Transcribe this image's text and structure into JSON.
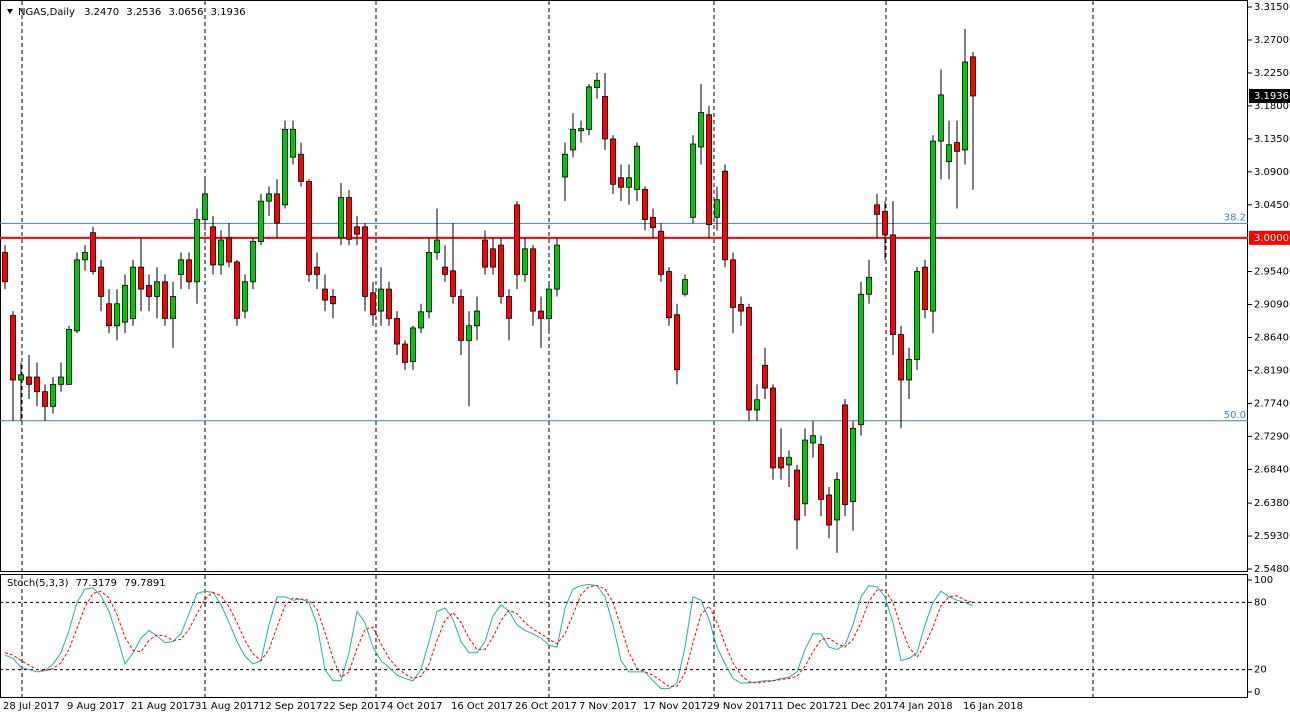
{
  "chart_data": [
    {
      "type": "candlestick",
      "title": "NGAS,Daily",
      "title_values": [
        {
          "value": 3.247,
          "label": "3.2470"
        },
        3.2536,
        3.0656,
        3.1936
      ],
      "categories": [
        "28 Jul 2017",
        null,
        null,
        null,
        null,
        null,
        null,
        null,
        "9 Aug 2017",
        null,
        null,
        null,
        null,
        null,
        null,
        null,
        "21 Aug 2017",
        null,
        null,
        null,
        null,
        null,
        null,
        null,
        "31 Aug 2017",
        null,
        null,
        null,
        null,
        null,
        null,
        null,
        "12 Sep 2017",
        null,
        null,
        null,
        null,
        null,
        null,
        null,
        "22 Sep 2017",
        null,
        null,
        null,
        null,
        null,
        null,
        null,
        "4 Oct 2017",
        null,
        null,
        null,
        null,
        null,
        null,
        null,
        "16 Oct 2017",
        null,
        null,
        null,
        null,
        null,
        null,
        null,
        "26 Oct 2017",
        null,
        null,
        null,
        null,
        null,
        null,
        null,
        "7 Nov 2017",
        null,
        null,
        null,
        null,
        null,
        null,
        null,
        "17 Nov 2017",
        null,
        null,
        null,
        null,
        null,
        null,
        null,
        "29 Nov 2017",
        null,
        null,
        null,
        null,
        null,
        null,
        null,
        "11 Dec 2017",
        null,
        null,
        null,
        null,
        null,
        null,
        null,
        "21 Dec 2017",
        null,
        null,
        null,
        null,
        null,
        null,
        null,
        "4 Jan 2018",
        null,
        null,
        null,
        null,
        null,
        null,
        null,
        "16 Jan 2018",
        null
      ],
      "open": [
        2.98,
        2.894,
        2.806,
        2.81,
        2.81,
        2.79,
        2.77,
        2.8,
        2.8,
        2.873,
        2.97,
        3.007,
        2.96,
        2.91,
        2.88,
        2.885,
        2.89,
        2.96,
        2.935,
        2.92,
        2.94,
        2.89,
        2.95,
        2.97,
        2.94,
        3.025,
        3.015,
        2.963,
        3.0,
        2.967,
        2.9,
        2.94,
        2.995,
        3.05,
        3.06,
        3.045,
        3.11,
        3.114,
        3.077,
        2.96,
        2.93,
        2.92,
        3.0,
        3.055,
        3.015,
        3.015,
        2.925,
        2.9,
        2.93,
        2.89,
        2.855,
        2.831,
        2.877,
        2.899,
        2.98,
        2.96,
        2.955,
        2.92,
        2.86,
        2.88,
        2.997,
        2.985,
        2.99,
        2.92,
        3.045,
        2.95,
        2.985,
        2.9,
        2.89,
        2.93,
        3.083,
        3.12,
        3.146,
        3.148,
        3.205,
        3.193,
        3.135,
        3.082,
        3.069,
        3.066,
        3.066,
        3.028,
        3.009,
        2.954,
        2.895,
        2.923,
        3.028,
        3.124,
        3.168,
        3.028,
        3.091,
        2.97,
        2.909,
        2.905,
        2.765,
        2.826,
        2.795,
        2.7,
        2.69,
        2.683,
        2.637,
        2.72,
        2.718,
        2.649,
        2.615,
        2.772,
        2.64,
        2.745,
        2.923,
        3.045,
        3.036,
        3.004,
        2.868,
        2.806,
        2.834,
        2.96,
        2.9,
        3.132,
        3.104,
        3.13,
        3.12,
        3.247
      ],
      "high": [
        2.99,
        2.9,
        2.83,
        2.84,
        2.83,
        2.8,
        2.81,
        2.83,
        2.88,
        2.98,
        2.99,
        3.015,
        2.97,
        2.93,
        2.93,
        2.95,
        2.97,
        3.0,
        2.95,
        2.96,
        2.95,
        2.94,
        2.98,
        2.98,
        3.04,
        3.08,
        3.03,
        3.01,
        3.02,
        2.97,
        2.95,
        3.0,
        3.06,
        3.07,
        3.08,
        3.16,
        3.16,
        3.13,
        3.08,
        2.98,
        2.95,
        2.93,
        3.075,
        3.065,
        3.03,
        3.02,
        2.94,
        2.96,
        2.94,
        2.9,
        2.86,
        2.88,
        2.91,
        3.0,
        3.04,
        2.99,
        3.02,
        2.93,
        2.9,
        2.92,
        3.01,
        3.0,
        3.0,
        2.93,
        3.05,
        3.0,
        2.99,
        2.92,
        2.94,
        3.0,
        3.13,
        3.17,
        3.16,
        3.21,
        3.225,
        3.225,
        3.14,
        3.1,
        3.1,
        3.13,
        3.07,
        3.04,
        3.02,
        2.96,
        2.91,
        2.95,
        3.14,
        3.21,
        3.18,
        3.07,
        3.1,
        2.98,
        2.92,
        2.91,
        2.8,
        2.85,
        2.8,
        2.74,
        2.71,
        2.69,
        2.74,
        2.75,
        2.73,
        2.66,
        2.68,
        2.78,
        2.75,
        2.94,
        2.97,
        3.06,
        3.05,
        3.05,
        2.88,
        2.85,
        2.96,
        2.97,
        3.14,
        3.23,
        3.16,
        3.16,
        3.285,
        3.2536
      ],
      "low": [
        2.93,
        2.75,
        2.75,
        2.78,
        2.77,
        2.75,
        2.76,
        2.79,
        2.8,
        2.87,
        2.955,
        2.95,
        2.9,
        2.87,
        2.86,
        2.87,
        2.88,
        2.9,
        2.9,
        2.89,
        2.88,
        2.85,
        2.93,
        2.93,
        2.91,
        3.01,
        2.95,
        2.95,
        2.96,
        2.88,
        2.89,
        2.93,
        2.99,
        3.03,
        3.0,
        3.04,
        3.1,
        3.07,
        2.94,
        2.93,
        2.9,
        2.89,
        2.99,
        2.99,
        2.99,
        2.9,
        2.88,
        2.88,
        2.88,
        2.84,
        2.82,
        2.82,
        2.87,
        2.89,
        2.97,
        2.94,
        2.91,
        2.84,
        2.77,
        2.86,
        2.95,
        2.95,
        2.91,
        2.86,
        2.93,
        2.94,
        2.88,
        2.85,
        2.87,
        2.92,
        3.05,
        3.11,
        3.13,
        3.14,
        3.19,
        3.12,
        3.06,
        3.05,
        3.045,
        3.05,
        3.01,
        3.0,
        2.94,
        2.88,
        2.8,
        2.92,
        3.02,
        3.1,
        3.0,
        3.01,
        2.96,
        2.87,
        2.88,
        2.75,
        2.75,
        2.78,
        2.67,
        2.67,
        2.66,
        2.575,
        2.62,
        2.7,
        2.62,
        2.59,
        2.57,
        2.62,
        2.6,
        2.73,
        2.91,
        3.0,
        2.97,
        2.84,
        2.74,
        2.78,
        2.82,
        2.89,
        2.87,
        3.08,
        3.08,
        3.04,
        3.1,
        3.0656
      ],
      "close": [
        2.94,
        2.806,
        2.813,
        2.8,
        2.79,
        2.77,
        2.8,
        2.81,
        2.875,
        2.97,
        2.98,
        2.954,
        2.92,
        2.88,
        2.91,
        2.935,
        2.96,
        2.93,
        2.92,
        2.94,
        2.89,
        2.92,
        2.97,
        2.94,
        3.025,
        3.06,
        2.963,
        2.997,
        2.967,
        2.89,
        2.94,
        2.995,
        3.05,
        3.06,
        3.02,
        3.148,
        3.148,
        3.077,
        2.95,
        2.95,
        2.915,
        2.91,
        3.055,
        2.998,
        3.005,
        2.92,
        2.895,
        2.93,
        2.89,
        2.855,
        2.83,
        2.877,
        2.899,
        2.98,
        2.997,
        2.95,
        2.92,
        2.86,
        2.88,
        2.9,
        2.96,
        2.96,
        2.92,
        2.89,
        2.95,
        2.985,
        2.9,
        2.89,
        2.93,
        2.99,
        3.114,
        3.148,
        3.149,
        3.206,
        3.215,
        3.135,
        3.073,
        3.069,
        3.082,
        3.125,
        3.025,
        3.014,
        2.95,
        2.891,
        2.82,
        2.943,
        3.128,
        3.171,
        3.018,
        3.052,
        2.97,
        2.905,
        2.9,
        2.765,
        2.779,
        2.795,
        2.686,
        2.686,
        2.7,
        2.615,
        2.724,
        2.73,
        2.643,
        2.608,
        2.67,
        2.636,
        2.74,
        2.923,
        2.946,
        3.032,
        3.004,
        2.868,
        2.806,
        2.834,
        2.954,
        2.902,
        3.132,
        3.195,
        3.127,
        3.118,
        3.24,
        3.1936
      ],
      "up_color": "#00c800",
      "down_color": "#ff0000",
      "ylim": [
        2.5453,
        3.3232
      ],
      "yticks": [
        {
          "value": 3.315,
          "label": "3.3150"
        },
        {
          "value": 3.27,
          "label": "3.2700"
        },
        {
          "value": 3.225,
          "label": "3.2250"
        },
        {
          "value": 3.18,
          "label": "3.1800"
        },
        {
          "value": 3.135,
          "label": "3.1350"
        },
        {
          "value": 3.09,
          "label": "3.0900"
        },
        {
          "value": 3.045,
          "label": "3.0450"
        },
        {
          "value": 2.954,
          "label": "2.9540"
        },
        {
          "value": 2.909,
          "label": "2.9090"
        },
        {
          "value": 2.864,
          "label": "2.8640"
        },
        {
          "value": 2.819,
          "label": "2.8190"
        },
        {
          "value": 2.774,
          "label": "2.7740"
        },
        {
          "value": 2.729,
          "label": "2.7290"
        },
        {
          "value": 2.684,
          "label": "2.6840"
        },
        {
          "value": 2.638,
          "label": "2.6380"
        },
        {
          "value": 2.593,
          "label": "2.5930"
        },
        {
          "value": 2.548,
          "label": "2.5480"
        }
      ],
      "levels": [
        {
          "value": 3,
          "label": "3.0000",
          "color": "#ff0000"
        }
      ],
      "fib_levels": [
        {
          "value": 3.0197,
          "label": "38.2",
          "color": "#4682b4"
        },
        {
          "value": 2.7503,
          "label": "50.0",
          "color": "#4682b4"
        }
      ],
      "last_price": {
        "value": 3.1936,
        "label": "3.1936"
      }
    },
    {
      "type": "line",
      "title": "Stoch(5,3,3)",
      "title_values": [
        77.3179,
        79.7891
      ],
      "series": [
        {
          "color": "#20b2aa",
          "dashed": false,
          "values": [
            33,
            30,
            22,
            20,
            18,
            19,
            25,
            35,
            55,
            80,
            92,
            93,
            86,
            72,
            50,
            25,
            35,
            48,
            55,
            50,
            44,
            45,
            52,
            70,
            88,
            90,
            89,
            78,
            62,
            45,
            32,
            25,
            28,
            60,
            85,
            85,
            82,
            83,
            80,
            60,
            20,
            10,
            10,
            35,
            72,
            62,
            40,
            28,
            22,
            15,
            12,
            10,
            20,
            45,
            72,
            75,
            65,
            45,
            35,
            35,
            45,
            68,
            78,
            72,
            60,
            55,
            52,
            48,
            42,
            40,
            75,
            92,
            95,
            96,
            95,
            85,
            60,
            28,
            18,
            18,
            18,
            10,
            3,
            3,
            8,
            40,
            85,
            82,
            65,
            40,
            25,
            12,
            8,
            8,
            9,
            10,
            10,
            12,
            13,
            18,
            38,
            52,
            52,
            40,
            38,
            42,
            60,
            85,
            95,
            94,
            85,
            62,
            28,
            30,
            35,
            60,
            80,
            90,
            85,
            82,
            80,
            77.3179
          ]
        },
        {
          "color": "#ff0000",
          "dashed": true,
          "values": [
            35,
            33,
            28,
            24,
            20,
            19,
            21,
            26,
            38,
            57,
            76,
            88,
            90,
            84,
            69,
            49,
            37,
            36,
            46,
            51,
            50,
            46,
            47,
            56,
            70,
            83,
            89,
            86,
            76,
            62,
            46,
            34,
            28,
            38,
            58,
            77,
            84,
            83,
            82,
            74,
            53,
            30,
            13,
            18,
            39,
            56,
            58,
            43,
            30,
            22,
            16,
            12,
            14,
            25,
            46,
            64,
            71,
            62,
            48,
            38,
            38,
            49,
            64,
            73,
            70,
            62,
            56,
            52,
            47,
            43,
            52,
            69,
            87,
            94,
            95,
            92,
            80,
            58,
            35,
            21,
            18,
            15,
            10,
            5,
            5,
            17,
            44,
            69,
            77,
            62,
            43,
            26,
            15,
            9,
            8,
            9,
            10,
            11,
            12,
            14,
            23,
            36,
            47,
            48,
            43,
            40,
            47,
            62,
            81,
            91,
            91,
            80,
            58,
            40,
            31,
            42,
            58,
            77,
            85,
            86,
            82,
            79.7891
          ]
        }
      ],
      "ylim": [
        -4.5,
        104.5
      ],
      "yticks": [
        0,
        20,
        80,
        100
      ],
      "levels": [
        20,
        80
      ]
    }
  ]
}
